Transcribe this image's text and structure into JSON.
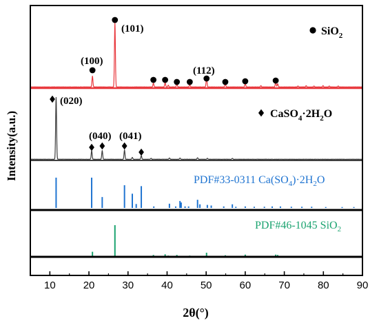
{
  "chart_data": {
    "type": "line",
    "xlabel": "2θ(°)",
    "ylabel": "Intensity(a.u.)",
    "xlim": [
      5,
      90
    ],
    "xticks": [
      "10",
      "20",
      "30",
      "40",
      "50",
      "60",
      "70",
      "80",
      "90"
    ],
    "grid": false,
    "colors": {
      "sio2": "#e8383d",
      "gypsum": "#3c3c3c",
      "pdf_gypsum": "#1f74d1",
      "pdf_sio2": "#1aa36f"
    },
    "panels": [
      {
        "name": "SiO2 XRD",
        "kind": "pattern",
        "color": "#e8383d",
        "peaks": [
          [
            20.9,
            0.17
          ],
          [
            26.65,
            1.0
          ],
          [
            36.5,
            0.06
          ],
          [
            39.5,
            0.07
          ],
          [
            40.3,
            0.03
          ],
          [
            42.5,
            0.05
          ],
          [
            45.8,
            0.04
          ],
          [
            50.1,
            0.14
          ],
          [
            54.9,
            0.05
          ],
          [
            60.0,
            0.06
          ],
          [
            64.0,
            0.02
          ],
          [
            67.8,
            0.08
          ],
          [
            68.3,
            0.05
          ],
          [
            73.5,
            0.015
          ],
          [
            75.6,
            0.02
          ],
          [
            77.6,
            0.015
          ],
          [
            79.9,
            0.02
          ],
          [
            81.5,
            0.015
          ],
          [
            83.8,
            0.015
          ]
        ],
        "markers": [
          20.9,
          26.65,
          36.5,
          39.5,
          42.5,
          45.8,
          50.1,
          54.9,
          60.0,
          67.8
        ],
        "annotations": [
          {
            "label": "(100)",
            "x": 20.9
          },
          {
            "label": "(101)",
            "x": 26.65
          },
          {
            "label": "(112)",
            "x": 50.1
          }
        ],
        "legend_label": "SiO",
        "legend_sub": "2"
      },
      {
        "name": "CaSO4·2H2O XRD",
        "kind": "pattern",
        "color": "#3c3c3c",
        "peaks": [
          [
            11.6,
            1.0
          ],
          [
            20.7,
            0.14
          ],
          [
            23.4,
            0.14
          ],
          [
            29.1,
            0.15
          ],
          [
            31.1,
            0.03
          ],
          [
            33.4,
            0.06
          ],
          [
            35.9,
            0.015
          ],
          [
            40.6,
            0.02
          ],
          [
            43.3,
            0.02
          ],
          [
            47.8,
            0.025
          ],
          [
            50.3,
            0.015
          ],
          [
            56.7,
            0.015
          ]
        ],
        "markers": [
          11.6,
          20.7,
          23.4,
          29.1,
          33.4
        ],
        "annotations": [
          {
            "label": "(020)",
            "x": 11.6
          },
          {
            "label": "(040)",
            "x": 20.7
          },
          {
            "label": "(041)",
            "x": 29.1
          }
        ],
        "legend_label": "CaSO",
        "legend_sub1": "4",
        "legend_mid": "·2H",
        "legend_sub2": "2",
        "legend_end": "O"
      },
      {
        "name": "PDF#33-0311",
        "kind": "sticks",
        "color": "#1f74d1",
        "label": "PDF#33-0311 Ca(SO",
        "label_sub1": "4",
        "label_mid": ")·2H",
        "label_sub2": "2",
        "label_end": "O",
        "sticks": [
          [
            11.6,
            1.0
          ],
          [
            20.7,
            1.0
          ],
          [
            23.4,
            0.36
          ],
          [
            29.1,
            0.75
          ],
          [
            31.1,
            0.47
          ],
          [
            32.1,
            0.13
          ],
          [
            33.4,
            0.72
          ],
          [
            36.6,
            0.05
          ],
          [
            40.6,
            0.14
          ],
          [
            42.2,
            0.05
          ],
          [
            43.3,
            0.23
          ],
          [
            43.6,
            0.18
          ],
          [
            44.6,
            0.05
          ],
          [
            45.5,
            0.05
          ],
          [
            47.8,
            0.27
          ],
          [
            48.4,
            0.12
          ],
          [
            50.3,
            0.1
          ],
          [
            51.3,
            0.08
          ],
          [
            54.5,
            0.05
          ],
          [
            56.7,
            0.12
          ],
          [
            57.6,
            0.04
          ],
          [
            60.0,
            0.05
          ],
          [
            62.3,
            0.04
          ],
          [
            64.9,
            0.04
          ],
          [
            66.9,
            0.05
          ],
          [
            69.0,
            0.05
          ],
          [
            71.8,
            0.04
          ],
          [
            74.5,
            0.04
          ],
          [
            77.0,
            0.04
          ],
          [
            80.6,
            0.03
          ],
          [
            84.8,
            0.03
          ],
          [
            87.8,
            0.03
          ]
        ]
      },
      {
        "name": "PDF#46-1045",
        "kind": "sticks",
        "color": "#1aa36f",
        "label": "PDF#46-1045 SiO",
        "label_sub": "2",
        "sticks": [
          [
            20.9,
            0.16
          ],
          [
            26.65,
            1.0
          ],
          [
            36.5,
            0.06
          ],
          [
            39.5,
            0.08
          ],
          [
            40.3,
            0.04
          ],
          [
            42.5,
            0.06
          ],
          [
            45.8,
            0.04
          ],
          [
            50.1,
            0.13
          ],
          [
            54.9,
            0.05
          ],
          [
            60.0,
            0.07
          ],
          [
            64.0,
            0.02
          ],
          [
            67.8,
            0.07
          ],
          [
            68.3,
            0.06
          ],
          [
            73.5,
            0.02
          ],
          [
            75.6,
            0.03
          ],
          [
            77.6,
            0.02
          ],
          [
            79.9,
            0.03
          ],
          [
            81.5,
            0.02
          ],
          [
            83.8,
            0.02
          ]
        ]
      }
    ]
  }
}
